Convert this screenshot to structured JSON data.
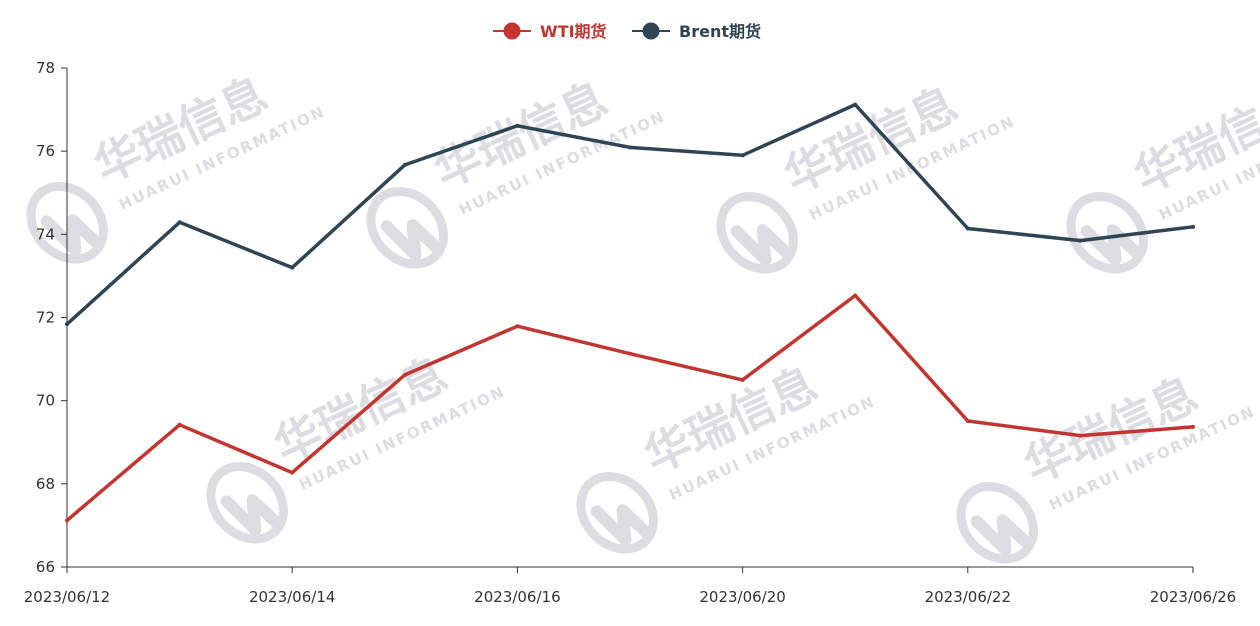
{
  "watermark": {
    "title": "华瑞信息",
    "subtitle": "HUARUI INFORMATION"
  },
  "chart_data": {
    "type": "line",
    "x": [
      "2023/06/12",
      "2023/06/13",
      "2023/06/14",
      "2023/06/15",
      "2023/06/16",
      "2023/06/19",
      "2023/06/20",
      "2023/06/21",
      "2023/06/22",
      "2023/06/23",
      "2023/06/26"
    ],
    "x_tick_labels": [
      "2023/06/12",
      "2023/06/14",
      "2023/06/16",
      "2023/06/20",
      "2023/06/22",
      "2023/06/26"
    ],
    "y_ticks": [
      66,
      68,
      70,
      72,
      74,
      76,
      78
    ],
    "ylim": [
      66,
      78
    ],
    "title": "",
    "xlabel": "",
    "ylabel": "",
    "legend_position": "top-center",
    "grid": false,
    "series": [
      {
        "name": "WTI期货",
        "color": "#c23531",
        "values": [
          67.12,
          69.42,
          68.27,
          70.62,
          71.79,
          71.13,
          70.5,
          72.53,
          69.51,
          69.16,
          69.37
        ]
      },
      {
        "name": "Brent期货",
        "color": "#2f4554",
        "values": [
          71.84,
          74.29,
          73.2,
          75.67,
          76.61,
          76.09,
          75.9,
          77.12,
          74.14,
          73.85,
          74.18
        ]
      }
    ]
  }
}
